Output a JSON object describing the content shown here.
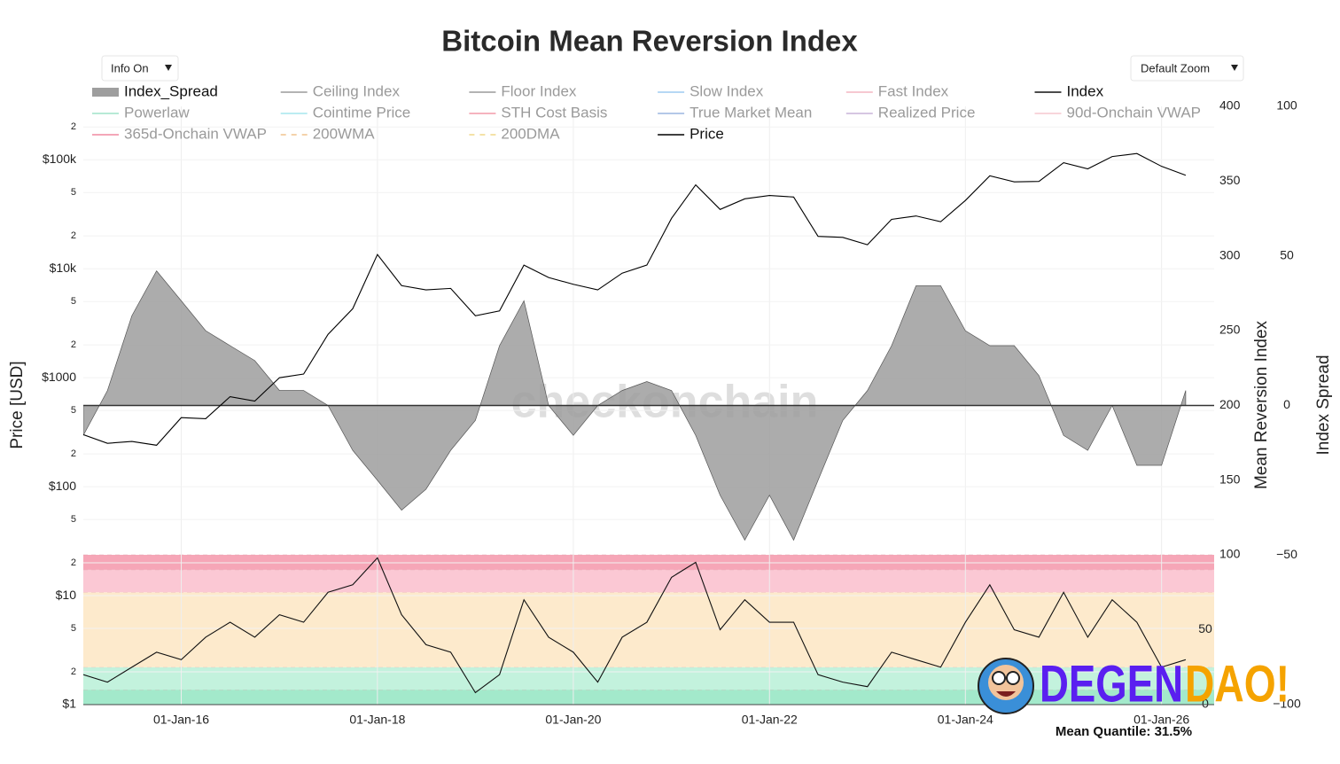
{
  "chart_data": {
    "type": "line",
    "title": "Bitcoin Mean Reversion Index",
    "controls": [
      "Info On",
      "Default Zoom"
    ],
    "watermark": "checkonchain",
    "footer": "Mean Quantile: 31.5%",
    "brand": [
      "DEGEN",
      "DAO!"
    ],
    "y_label": "Price [USD]",
    "y2_label": "Mean Reversion Index",
    "y3_label": "Index Spread",
    "grid": true,
    "log_y": true,
    "xlim": [
      "2015-01-01",
      "2026-07-16"
    ],
    "xticks": [
      {
        "value": "2016-01-01",
        "label": "01-Jan-16"
      },
      {
        "value": "2018-01-01",
        "label": "01-Jan-18"
      },
      {
        "value": "2020-01-01",
        "label": "01-Jan-20"
      },
      {
        "value": "2022-01-01",
        "label": "01-Jan-22"
      },
      {
        "value": "2024-01-01",
        "label": "01-Jan-24"
      },
      {
        "value": "2026-01-01",
        "label": "01-Jan-26"
      }
    ],
    "ylim": [
      1,
      309000
    ],
    "yticks": [
      {
        "value": 1,
        "label": "$1"
      },
      2,
      5,
      {
        "value": 10,
        "label": "$10"
      },
      {
        "value": 20,
        "label": "2"
      },
      {
        "value": 50,
        "label": "5"
      },
      {
        "value": 100,
        "label": "$100"
      },
      {
        "value": 200,
        "label": "2"
      },
      {
        "value": 500,
        "label": "5"
      },
      {
        "value": 1000,
        "label": "$1000"
      },
      {
        "value": 2000,
        "label": "2"
      },
      {
        "value": 5000,
        "label": "5"
      },
      {
        "value": 10000,
        "label": "$10k"
      },
      {
        "value": 20000,
        "label": "2"
      },
      {
        "value": 50000,
        "label": "5"
      },
      {
        "value": 100000,
        "label": "$100k"
      },
      {
        "value": 200000,
        "label": "2"
      }
    ],
    "y2lim": [
      100,
      400
    ],
    "y2ticks": [
      100,
      150,
      200,
      250,
      300,
      350,
      400
    ],
    "y3lim": [
      -100,
      100
    ],
    "y3ticks": [
      {
        "value": -100,
        "label": "−100"
      },
      {
        "value": -50,
        "label": "−50"
      },
      0,
      50,
      100
    ],
    "y4lim": [
      0,
      100
    ],
    "y4ticks": [
      0,
      50
    ],
    "bands": [
      {
        "from": 0,
        "to": 10,
        "color": "#a3e9cb"
      },
      {
        "from": 10,
        "to": 25,
        "color": "#c3f2dd"
      },
      {
        "from": 25,
        "to": 75,
        "color": "#fdeacc"
      },
      {
        "from": 75,
        "to": 90,
        "color": "#fbc8d4"
      },
      {
        "from": 90,
        "to": 100,
        "color": "#f6a6b7"
      }
    ],
    "x": [
      "2015-01-01",
      "2015-04-01",
      "2015-07-01",
      "2015-10-01",
      "2016-01-01",
      "2016-04-01",
      "2016-07-01",
      "2016-10-01",
      "2017-01-01",
      "2017-04-01",
      "2017-07-01",
      "2017-10-01",
      "2018-01-01",
      "2018-04-01",
      "2018-07-01",
      "2018-10-01",
      "2019-01-01",
      "2019-04-01",
      "2019-07-01",
      "2019-10-01",
      "2020-01-01",
      "2020-04-01",
      "2020-07-01",
      "2020-10-01",
      "2021-01-01",
      "2021-04-01",
      "2021-07-01",
      "2021-10-01",
      "2022-01-01",
      "2022-04-01",
      "2022-07-01",
      "2022-10-01",
      "2023-01-01",
      "2023-04-01",
      "2023-07-01",
      "2023-10-01",
      "2024-01-01",
      "2024-04-01",
      "2024-07-01",
      "2024-10-01",
      "2025-01-01",
      "2025-04-01",
      "2025-07-01",
      "2025-10-01",
      "2026-01-01",
      "2026-04-01"
    ],
    "series": [
      {
        "name": "Index_Spread",
        "color": "#9e9e9e",
        "axis": "y3",
        "style": "area",
        "visible": true,
        "values": [
          -10,
          5,
          30,
          45,
          35,
          25,
          20,
          15,
          5,
          5,
          0,
          -15,
          -25,
          -35,
          -28,
          -15,
          -5,
          20,
          35,
          0,
          -10,
          0,
          5,
          8,
          5,
          -10,
          -30,
          -45,
          -30,
          -45,
          -25,
          -5,
          5,
          20,
          40,
          40,
          25,
          20,
          20,
          10,
          -10,
          -15,
          0,
          -20,
          -20,
          5
        ]
      },
      {
        "name": "Ceiling Index",
        "color": "#9a9a9a",
        "visible": false
      },
      {
        "name": "Floor Index",
        "color": "#9a9a9a",
        "visible": false
      },
      {
        "name": "Slow Index",
        "color": "#9ecbf0",
        "visible": false
      },
      {
        "name": "Fast Index",
        "color": "#f4b6c2",
        "visible": false
      },
      {
        "name": "Index",
        "color": "#111111",
        "axis": "y4",
        "style": "line",
        "visible": true,
        "values": [
          20,
          15,
          25,
          35,
          30,
          45,
          55,
          45,
          60,
          55,
          75,
          80,
          98,
          60,
          40,
          35,
          8,
          20,
          70,
          45,
          35,
          15,
          45,
          55,
          85,
          95,
          50,
          70,
          55,
          55,
          20,
          15,
          12,
          35,
          30,
          25,
          55,
          80,
          50,
          45,
          75,
          45,
          70,
          55,
          25,
          30
        ]
      },
      {
        "name": "Powerlaw",
        "color": "#9fe3c8",
        "visible": false
      },
      {
        "name": "Cointime Price",
        "color": "#a6e6ee",
        "visible": false
      },
      {
        "name": "STH Cost Basis",
        "color": "#f29aa9",
        "visible": false
      },
      {
        "name": "True Market Mean",
        "color": "#9bb6e0",
        "visible": false
      },
      {
        "name": "Realized Price",
        "color": "#c9b3d9",
        "visible": false
      },
      {
        "name": "90d-Onchain VWAP",
        "color": "#f6c7cf",
        "visible": false
      },
      {
        "name": "365d-Onchain VWAP",
        "color": "#f08aa0",
        "visible": false
      },
      {
        "name": "200WMA",
        "color": "#f1c48e",
        "dash": true,
        "visible": false
      },
      {
        "name": "200DMA",
        "color": "#f0d88a",
        "dash": true,
        "visible": false
      },
      {
        "name": "Price",
        "color": "#000000",
        "axis": "y",
        "style": "line",
        "visible": true,
        "values": [
          300,
          250,
          260,
          240,
          430,
          420,
          670,
          610,
          1000,
          1080,
          2500,
          4300,
          13500,
          7000,
          6400,
          6600,
          3700,
          4100,
          10800,
          8300,
          7200,
          6400,
          9100,
          10800,
          29000,
          58800,
          35000,
          43800,
          47000,
          45500,
          19800,
          19400,
          16600,
          28400,
          30500,
          27000,
          42300,
          71300,
          62700,
          63300,
          94000,
          82500,
          107000,
          114000,
          87000,
          72000
        ]
      }
    ]
  }
}
